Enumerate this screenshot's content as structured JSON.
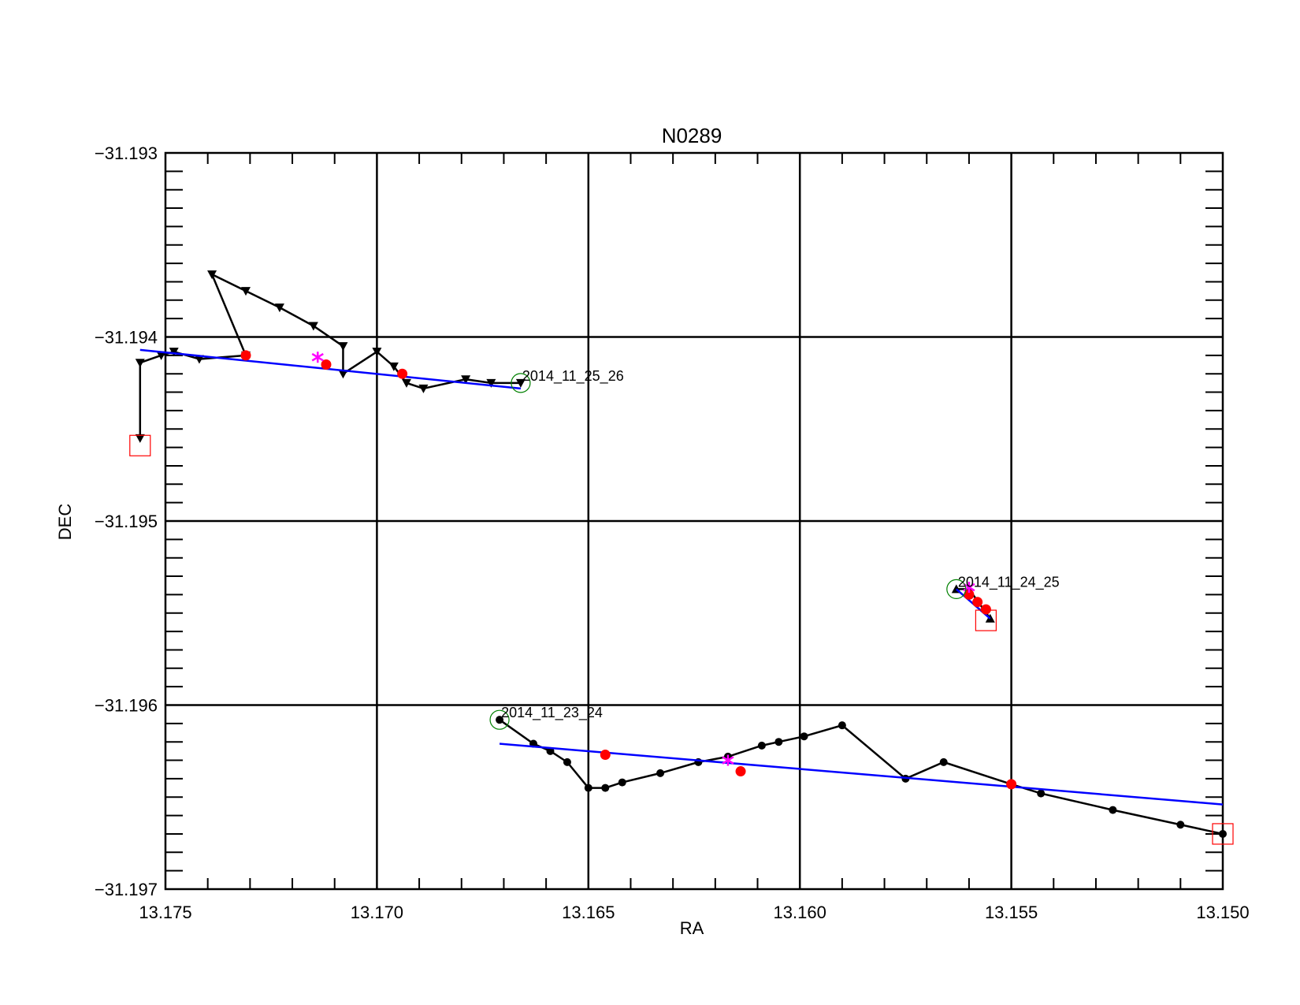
{
  "chart_data": {
    "type": "scatter",
    "title": "N0289",
    "xlabel": "RA",
    "ylabel": "DEC",
    "xlim": [
      13.175,
      13.15
    ],
    "ylim": [
      -31.197,
      -31.193
    ],
    "x_ticks": [
      "13.175",
      "13.170",
      "13.165",
      "13.160",
      "13.155",
      "13.150"
    ],
    "y_ticks": [
      "−31.193",
      "−31.194",
      "−31.195",
      "−31.196",
      "−31.197"
    ],
    "grid": true,
    "colors": {
      "track": "#000000",
      "fit": "#0000ff",
      "fit_point": "#ff0000",
      "mean_star": "#ff00ff",
      "start_circle": "#008000",
      "end_square": "#ff0000"
    },
    "series": [
      {
        "label": "2014_11_25_26",
        "marker": "triangle-down",
        "points": [
          [
            13.1666,
            -31.19425
          ],
          [
            13.1673,
            -31.19425
          ],
          [
            13.1679,
            -31.19423
          ],
          [
            13.1689,
            -31.19428
          ],
          [
            13.1693,
            -31.19425
          ],
          [
            13.1696,
            -31.19416
          ],
          [
            13.17,
            -31.19408
          ],
          [
            13.1708,
            -31.1942
          ],
          [
            13.1708,
            -31.19405
          ],
          [
            13.1715,
            -31.19394
          ],
          [
            13.1723,
            -31.19384
          ],
          [
            13.1731,
            -31.19375
          ],
          [
            13.1739,
            -31.19366
          ],
          [
            13.1731,
            -31.1941
          ],
          [
            13.1742,
            -31.19412
          ],
          [
            13.1748,
            -31.19408
          ],
          [
            13.1751,
            -31.1941
          ],
          [
            13.1756,
            -31.19414
          ],
          [
            13.1756,
            -31.19455
          ]
        ],
        "fit_line": [
          [
            13.1756,
            -31.19407
          ],
          [
            13.1666,
            -31.19428
          ]
        ],
        "fit_points": [
          [
            13.1731,
            -31.1941
          ],
          [
            13.1694,
            -31.1942
          ],
          [
            13.1712,
            -31.19415
          ]
        ],
        "mean": [
          13.1714,
          -31.19411
        ],
        "start": [
          13.1666,
          -31.19425
        ],
        "end": [
          13.1756,
          -31.19459
        ]
      },
      {
        "label": "2014_11_24_25",
        "marker": "triangle-up",
        "points": [
          [
            13.1563,
            -31.19537
          ],
          [
            13.156,
            -31.19537
          ],
          [
            13.1555,
            -31.19553
          ]
        ],
        "fit_line": [
          [
            13.1563,
            -31.19537
          ],
          [
            13.1555,
            -31.19553
          ]
        ],
        "fit_points": [
          [
            13.156,
            -31.1954
          ],
          [
            13.1558,
            -31.19544
          ],
          [
            13.1556,
            -31.19548
          ]
        ],
        "mean": [
          13.156,
          -31.19536
        ],
        "start": [
          13.1563,
          -31.19537
        ],
        "end": [
          13.1556,
          -31.19554
        ]
      },
      {
        "label": "2014_11_23_24",
        "marker": "circle",
        "points": [
          [
            13.1671,
            -31.19608
          ],
          [
            13.1663,
            -31.19621
          ],
          [
            13.1659,
            -31.19625
          ],
          [
            13.1655,
            -31.19631
          ],
          [
            13.165,
            -31.19645
          ],
          [
            13.1646,
            -31.19645
          ],
          [
            13.1642,
            -31.19642
          ],
          [
            13.1633,
            -31.19637
          ],
          [
            13.1624,
            -31.19631
          ],
          [
            13.1617,
            -31.19628
          ],
          [
            13.1609,
            -31.19622
          ],
          [
            13.1605,
            -31.1962
          ],
          [
            13.1599,
            -31.19617
          ],
          [
            13.159,
            -31.19611
          ],
          [
            13.1575,
            -31.1964
          ],
          [
            13.1566,
            -31.19631
          ],
          [
            13.155,
            -31.19643
          ],
          [
            13.1543,
            -31.19648
          ],
          [
            13.1526,
            -31.19657
          ],
          [
            13.151,
            -31.19665
          ],
          [
            13.15,
            -31.1967
          ]
        ],
        "fit_line": [
          [
            13.1671,
            -31.19621
          ],
          [
            13.15,
            -31.19654
          ]
        ],
        "fit_points": [
          [
            13.1646,
            -31.19627
          ],
          [
            13.1614,
            -31.19636
          ],
          [
            13.155,
            -31.19643
          ]
        ],
        "mean": [
          13.1617,
          -31.1963
        ],
        "start": [
          13.1671,
          -31.19608
        ],
        "end": [
          13.15,
          -31.1967
        ]
      }
    ]
  }
}
